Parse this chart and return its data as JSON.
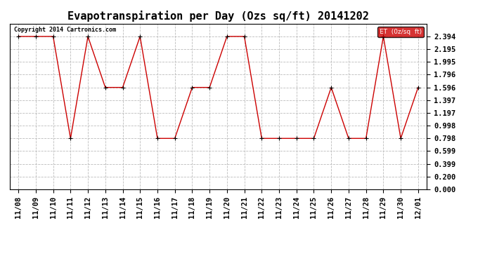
{
  "title": "Evapotranspiration per Day (Ozs sq/ft) 20141202",
  "x_labels": [
    "11/08",
    "11/09",
    "11/10",
    "11/11",
    "11/12",
    "11/13",
    "11/14",
    "11/15",
    "11/16",
    "11/17",
    "11/18",
    "11/19",
    "11/20",
    "11/21",
    "11/22",
    "11/23",
    "11/24",
    "11/25",
    "11/26",
    "11/27",
    "11/28",
    "11/29",
    "11/30",
    "12/01"
  ],
  "y_values": [
    2.394,
    2.394,
    2.394,
    0.798,
    2.394,
    1.596,
    1.596,
    2.394,
    0.798,
    0.798,
    1.596,
    1.596,
    2.394,
    2.394,
    0.798,
    0.798,
    0.798,
    0.798,
    1.596,
    0.798,
    0.798,
    2.394,
    0.798,
    1.596
  ],
  "y_ticks": [
    0.0,
    0.2,
    0.399,
    0.599,
    0.798,
    0.998,
    1.197,
    1.397,
    1.596,
    1.796,
    1.995,
    2.195,
    2.394
  ],
  "y_tick_labels": [
    "0.000",
    "0.200",
    "0.399",
    "0.599",
    "0.798",
    "0.998",
    "1.197",
    "1.397",
    "1.596",
    "1.796",
    "1.995",
    "2.195",
    "2.394"
  ],
  "line_color": "#cc0000",
  "marker_color": "#000000",
  "bg_color": "#ffffff",
  "grid_color": "#bbbbbb",
  "legend_label": "ET  (0z/sq  ft)",
  "legend_bg": "#cc0000",
  "legend_text_color": "#ffffff",
  "copyright_text": "Copyright 2014 Cartronics.com",
  "title_fontsize": 11,
  "tick_fontsize": 7.5,
  "copyright_fontsize": 6,
  "ylim": [
    0.0,
    2.594
  ]
}
